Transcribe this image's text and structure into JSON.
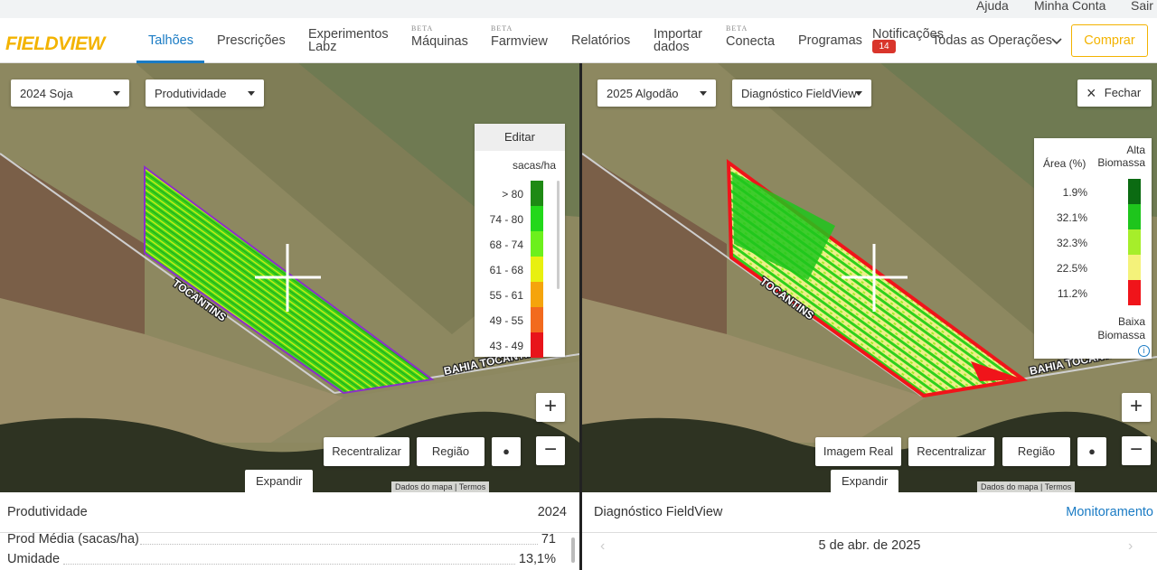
{
  "top_links": [
    "Ajuda",
    "Minha Conta",
    "Sair"
  ],
  "nav": {
    "logo": "FIELDVIEW",
    "tabs": [
      {
        "label": "Talhões"
      },
      {
        "label": "Prescrições"
      },
      {
        "label": "Experimentos Labz"
      },
      {
        "badge": "BETA",
        "label": "Máquinas"
      },
      {
        "badge": "BETA",
        "label": "Farmview"
      },
      {
        "label": "Relatórios"
      },
      {
        "label": "Importar dados"
      },
      {
        "badge": "BETA",
        "label": "Conecta"
      },
      {
        "label": "Programas"
      },
      {
        "label": "Notificações",
        "count": "14"
      }
    ],
    "operations": "Todas as Operações",
    "buy": "Comprar"
  },
  "left": {
    "season": "2024 Soja",
    "layer": "Produtividade",
    "legend": {
      "edit": "Editar",
      "unit": "sacas/ha",
      "items": [
        {
          "label": "> 80",
          "color": "#1e8a14"
        },
        {
          "label": "74 - 80",
          "color": "#23d81a"
        },
        {
          "label": "68 - 74",
          "color": "#6cf01c"
        },
        {
          "label": "61 - 68",
          "color": "#e8f00f"
        },
        {
          "label": "55 - 61",
          "color": "#f5a40c"
        },
        {
          "label": "49 - 55",
          "color": "#f26a1e"
        },
        {
          "label": "43 - 49",
          "color": "#e8141a"
        }
      ]
    },
    "roads": [
      "TOCANTINS",
      "BAHIA TOCANTINS"
    ],
    "buttons": [
      "Recentralizar",
      "Região"
    ],
    "expand": "Expandir",
    "attribution": [
      "Dados do mapa",
      "Termos"
    ],
    "summary": {
      "title": "Produtividade",
      "year": "2024",
      "rows": [
        {
          "label": "Prod Média (sacas/ha)",
          "value": "71"
        },
        {
          "label": "Umidade",
          "value": "13,1%"
        }
      ]
    }
  },
  "right": {
    "season": "2025 Algodão",
    "layer": "Diagnóstico FieldView",
    "close": "Fechar",
    "legend": {
      "header": "Área (%)",
      "high": "Alta Biomassa",
      "low": "Baixa Biomassa",
      "items": [
        {
          "label": "1.9%",
          "color": "#0b6b12"
        },
        {
          "label": "32.1%",
          "color": "#1ec51c"
        },
        {
          "label": "32.3%",
          "color": "#a6ee2a"
        },
        {
          "label": "22.5%",
          "color": "#f4f27a"
        },
        {
          "label": "11.2%",
          "color": "#f0141a"
        }
      ]
    },
    "roads": [
      "TOCANTINS",
      "BAHIA TOCANTINS"
    ],
    "buttons": [
      "Imagem Real",
      "Recentralizar",
      "Região"
    ],
    "expand": "Expandir",
    "attribution": [
      "Dados do mapa",
      "Termos"
    ],
    "summary": {
      "title": "Diagnóstico FieldView",
      "link": "Monitoramento",
      "date": "5 de abr. de 2025"
    }
  }
}
